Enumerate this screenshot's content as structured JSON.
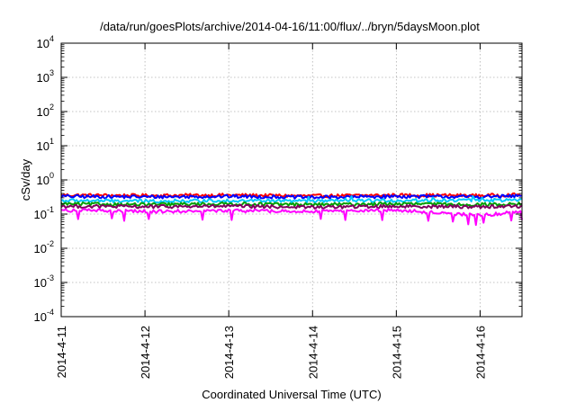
{
  "chart_data": {
    "type": "line",
    "title": "/data/run/goesPlots/archive/2014-04-16/11:00/flux/../bryn/5daysMoon.plot",
    "xlabel": "Coordinated Universal Time (UTC)",
    "ylabel": "cSv/day",
    "yscale": "log",
    "ylim": [
      0.0001,
      10000
    ],
    "xlim": [
      "2014-04-11",
      "2014-04-16 12:00"
    ],
    "grid": true,
    "xticks": [
      "2014-4-11",
      "2014-4-12",
      "2014-4-13",
      "2014-4-14",
      "2014-4-15",
      "2014-4-16"
    ],
    "yticks": [
      {
        "base": "10",
        "exp": "4"
      },
      {
        "base": "10",
        "exp": "3"
      },
      {
        "base": "10",
        "exp": "2"
      },
      {
        "base": "10",
        "exp": "1"
      },
      {
        "base": "10",
        "exp": "0"
      },
      {
        "base": "10",
        "exp": "-1"
      },
      {
        "base": "10",
        "exp": "-2"
      },
      {
        "base": "10",
        "exp": "-3"
      },
      {
        "base": "10",
        "exp": "-4"
      }
    ],
    "series": [
      {
        "color": "#ff0000",
        "x": [
          "2014-04-11",
          "2014-04-12",
          "2014-04-13",
          "2014-04-14",
          "2014-04-15",
          "2014-04-16",
          "2014-04-16 12:00"
        ],
        "values": [
          0.36,
          0.35,
          0.36,
          0.34,
          0.36,
          0.35,
          0.37
        ]
      },
      {
        "color": "#0000ff",
        "x": [
          "2014-04-11",
          "2014-04-12",
          "2014-04-13",
          "2014-04-14",
          "2014-04-15",
          "2014-04-16",
          "2014-04-16 12:00"
        ],
        "values": [
          0.33,
          0.32,
          0.33,
          0.31,
          0.33,
          0.32,
          0.34
        ]
      },
      {
        "color": "#00c8ff",
        "x": [
          "2014-04-11",
          "2014-04-12",
          "2014-04-13",
          "2014-04-14",
          "2014-04-15",
          "2014-04-16",
          "2014-04-16 12:00"
        ],
        "values": [
          0.25,
          0.24,
          0.25,
          0.24,
          0.25,
          0.26,
          0.25
        ]
      },
      {
        "color": "#00a000",
        "x": [
          "2014-04-11",
          "2014-04-12",
          "2014-04-13",
          "2014-04-14",
          "2014-04-15",
          "2014-04-16",
          "2014-04-16 12:00"
        ],
        "values": [
          0.2,
          0.19,
          0.2,
          0.19,
          0.2,
          0.19,
          0.2
        ]
      },
      {
        "color": "#800060",
        "x": [
          "2014-04-11",
          "2014-04-12",
          "2014-04-13",
          "2014-04-14",
          "2014-04-15",
          "2014-04-16",
          "2014-04-16 12:00"
        ],
        "values": [
          0.17,
          0.165,
          0.17,
          0.16,
          0.17,
          0.165,
          0.17
        ]
      },
      {
        "color": "#ff00ff",
        "x": [
          "2014-04-11",
          "2014-04-12",
          "2014-04-13",
          "2014-04-14",
          "2014-04-15",
          "2014-04-16",
          "2014-04-16 12:00"
        ],
        "values": [
          0.13,
          0.12,
          0.125,
          0.12,
          0.13,
          0.09,
          0.12
        ]
      }
    ]
  }
}
